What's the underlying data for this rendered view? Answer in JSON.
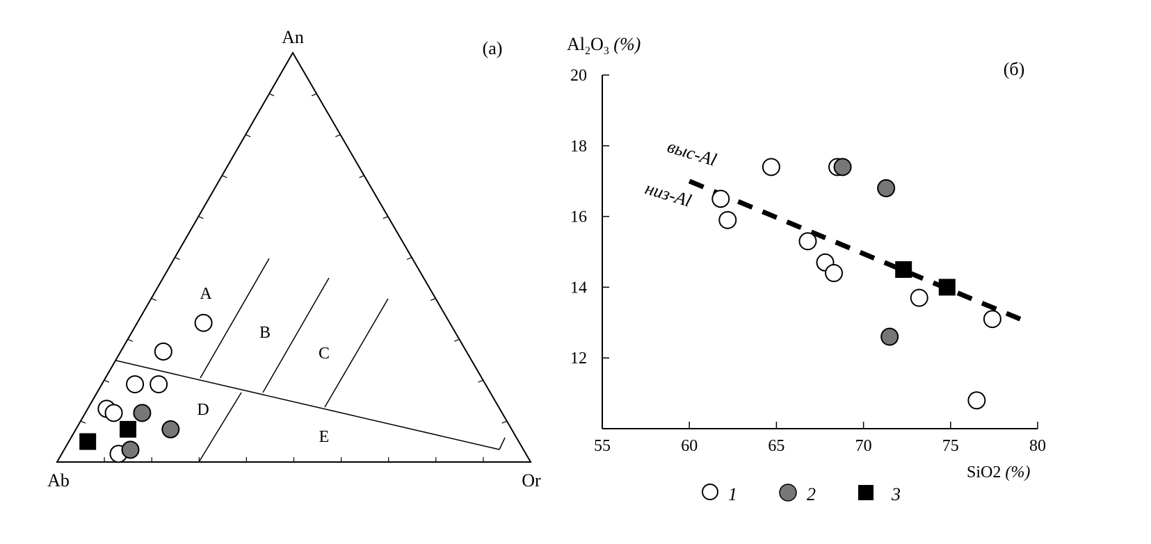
{
  "chart_data": [
    {
      "type": "ternary",
      "panel_label": "(a)",
      "vertices": {
        "top": "An",
        "left": "Ab",
        "right": "Or"
      },
      "field_labels": [
        "A",
        "B",
        "C",
        "D",
        "E"
      ],
      "series": [
        {
          "name": "1",
          "points": [
            {
              "an": 34,
              "ab": 52,
              "or": 14
            },
            {
              "an": 27,
              "ab": 64,
              "or": 9
            },
            {
              "an": 19,
              "ab": 74,
              "or": 7
            },
            {
              "an": 19,
              "ab": 69,
              "or": 12
            },
            {
              "an": 13,
              "ab": 83,
              "or": 4
            },
            {
              "an": 12,
              "ab": 82,
              "or": 6
            },
            {
              "an": 2,
              "ab": 86,
              "or": 12
            }
          ]
        },
        {
          "name": "2",
          "points": [
            {
              "an": 12,
              "ab": 76,
              "or": 12
            },
            {
              "an": 8,
              "ab": 72,
              "or": 20
            },
            {
              "an": 3,
              "ab": 83,
              "or": 14
            }
          ]
        },
        {
          "name": "3",
          "points": [
            {
              "an": 8,
              "ab": 81,
              "or": 11
            },
            {
              "an": 5,
              "ab": 91,
              "or": 4
            }
          ]
        }
      ]
    },
    {
      "type": "scatter",
      "panel_label": "(б)",
      "xlabel": "SiO2 (%)",
      "ylabel": "Al2O3 (%)",
      "xlim": [
        55,
        80
      ],
      "ylim": [
        10,
        20
      ],
      "xticks": [
        55,
        60,
        65,
        70,
        75,
        80
      ],
      "yticks": [
        12,
        14,
        16,
        18,
        20
      ],
      "line_labels": {
        "upper": "выс-Al",
        "lower": "низ-Al"
      },
      "divider_line": {
        "x": [
          60,
          79
        ],
        "y": [
          17.0,
          13.1
        ]
      },
      "series": [
        {
          "name": "1",
          "x": [
            61.8,
            62.2,
            64.7,
            66.8,
            67.8,
            68.3,
            68.5,
            73.2,
            76.5,
            77.4
          ],
          "y": [
            16.5,
            15.9,
            17.4,
            15.3,
            14.7,
            14.4,
            17.4,
            13.7,
            10.8,
            13.1
          ]
        },
        {
          "name": "2",
          "x": [
            68.8,
            71.3,
            71.5
          ],
          "y": [
            17.4,
            16.8,
            12.6
          ]
        },
        {
          "name": "3",
          "x": [
            72.3,
            74.8
          ],
          "y": [
            14.5,
            14.0
          ]
        }
      ]
    }
  ],
  "legend": [
    {
      "symbol": "open-circle",
      "label": "1"
    },
    {
      "symbol": "grey-circle",
      "label": "2"
    },
    {
      "symbol": "black-square",
      "label": "3"
    }
  ],
  "colors": {
    "open_fill": "#ffffff",
    "grey_fill": "#777777",
    "square_fill": "#000000",
    "stroke": "#000000"
  }
}
